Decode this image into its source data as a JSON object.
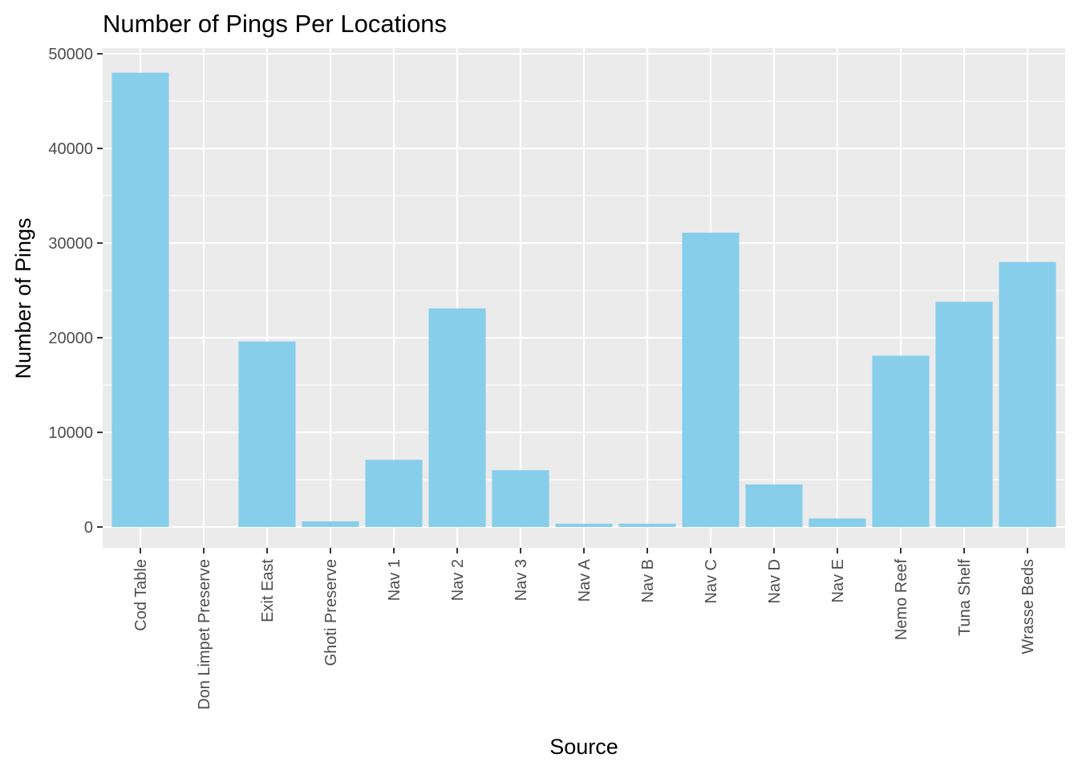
{
  "chart_data": {
    "type": "bar",
    "title": "Number of Pings Per Locations",
    "xlabel": "Source",
    "ylabel": "Number of Pings",
    "categories": [
      "Cod Table",
      "Don Limpet Preserve",
      "Exit East",
      "Ghoti Preserve",
      "Nav 1",
      "Nav 2",
      "Nav 3",
      "Nav A",
      "Nav B",
      "Nav C",
      "Nav D",
      "Nav E",
      "Nemo Reef",
      "Tuna Shelf",
      "Wrasse Beds"
    ],
    "values": [
      48000,
      0,
      19600,
      600,
      7100,
      23100,
      6000,
      350,
      350,
      31100,
      4500,
      900,
      18100,
      23800,
      28000
    ],
    "ylim": [
      -2200,
      50600
    ],
    "yticks": [
      0,
      10000,
      20000,
      30000,
      40000,
      50000
    ],
    "ytick_labels": [
      "0",
      "10000",
      "20000",
      "30000",
      "40000",
      "50000"
    ],
    "grid": true,
    "legend": "none",
    "colors": {
      "bar": "#87ceeb",
      "panel": "#ebebeb",
      "grid": "#ffffff",
      "tick_text": "#4d4d4d"
    }
  }
}
